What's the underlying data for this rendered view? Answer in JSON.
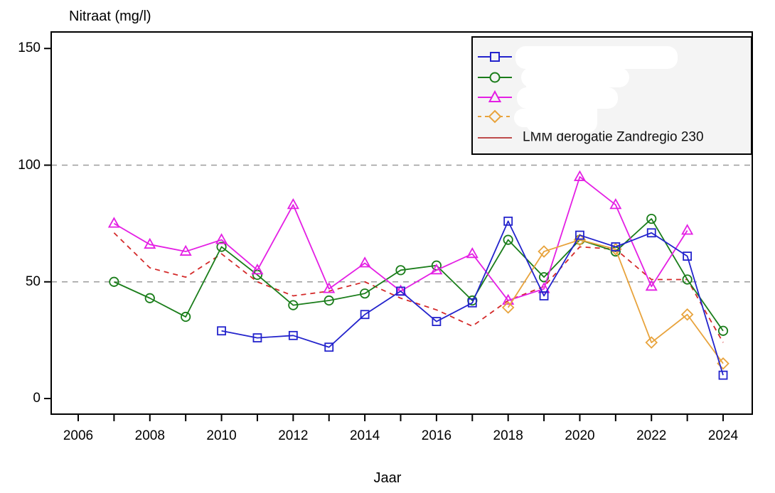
{
  "chart_data": {
    "type": "line",
    "title": "Nitraat (mg/l)",
    "xlabel": "Jaar",
    "ylabel": "",
    "ylim": [
      0,
      155
    ],
    "y_ticks": [
      0,
      50,
      100,
      150
    ],
    "gridlines_y": [
      50,
      100
    ],
    "grid_style": "dashed-gray-horizontal-only",
    "x_minor_ticks": [
      2006,
      2007,
      2008,
      2009,
      2010,
      2011,
      2012,
      2013,
      2014,
      2015,
      2016,
      2017,
      2018,
      2019,
      2020,
      2021,
      2022,
      2023,
      2024
    ],
    "x_tick_labels": [
      "2006",
      "2008",
      "2010",
      "2012",
      "2014",
      "2016",
      "2018",
      "2020",
      "2022",
      "2024"
    ],
    "x_tick_label_years": [
      2006,
      2008,
      2010,
      2012,
      2014,
      2016,
      2018,
      2020,
      2022,
      2024
    ],
    "legend_position": "top-right",
    "series": [
      {
        "name": "",
        "redacted_label": true,
        "marker": "square",
        "color": "#2323cc",
        "line_style": "solid",
        "x": [
          2010,
          2011,
          2012,
          2013,
          2014,
          2015,
          2016,
          2017,
          2018,
          2019,
          2020,
          2021,
          2022,
          2023,
          2024
        ],
        "y": [
          29,
          26,
          27,
          22,
          36,
          46,
          33,
          41,
          76,
          44,
          70,
          65,
          71,
          61,
          10
        ]
      },
      {
        "name": "",
        "redacted_label": true,
        "marker": "circle",
        "color": "#1a7d1a",
        "line_style": "solid",
        "x": [
          2007,
          2008,
          2009,
          2010,
          2011,
          2012,
          2013,
          2014,
          2015,
          2016,
          2017,
          2018,
          2019,
          2020,
          2021,
          2022,
          2023,
          2024
        ],
        "y": [
          50,
          43,
          35,
          65,
          53,
          40,
          42,
          45,
          55,
          57,
          42,
          68,
          52,
          68,
          63,
          77,
          51,
          29
        ]
      },
      {
        "name": "",
        "redacted_label": true,
        "marker": "triangle",
        "color": "#e41fe4",
        "line_style": "solid",
        "x": [
          2007,
          2008,
          2009,
          2010,
          2011,
          2012,
          2013,
          2014,
          2015,
          2016,
          2017,
          2018,
          2019,
          2020,
          2021,
          2022,
          2023
        ],
        "y": [
          75,
          66,
          63,
          68,
          55,
          83,
          47,
          58,
          46,
          55,
          62,
          42,
          47,
          95,
          83,
          48,
          72
        ]
      },
      {
        "name": "",
        "redacted_label": true,
        "marker": "diamond",
        "color": "#e8a33c",
        "line_style": "solid",
        "x": [
          2018,
          2019,
          2020,
          2021,
          2022,
          2023,
          2024
        ],
        "y": [
          39,
          63,
          68,
          64,
          24,
          36,
          15
        ]
      },
      {
        "name": "LMM derogatie Zandregio 230",
        "redacted_label": false,
        "marker": "none",
        "color": "#d42a2a",
        "line_style": "dashed",
        "x": [
          2007,
          2008,
          2009,
          2010,
          2011,
          2012,
          2013,
          2014,
          2015,
          2016,
          2017,
          2018,
          2019,
          2020,
          2021,
          2022,
          2023,
          2024
        ],
        "y": [
          71,
          56,
          52,
          62,
          50,
          44,
          46,
          50,
          43,
          38,
          31,
          42,
          48,
          65,
          64,
          51,
          51,
          24
        ]
      }
    ]
  },
  "legend": {
    "background": "#f4f4f4",
    "entries": [
      {
        "label": "",
        "redacted": true,
        "color": "#2323cc",
        "marker": "square",
        "line": "solid"
      },
      {
        "label": "",
        "redacted": true,
        "color": "#1a7d1a",
        "marker": "circle",
        "line": "solid"
      },
      {
        "label": "",
        "redacted": true,
        "color": "#e41fe4",
        "marker": "triangle",
        "line": "solid"
      },
      {
        "label": "",
        "redacted": true,
        "color": "#e8a33c",
        "marker": "diamond",
        "line": "dashed"
      },
      {
        "label": "LMM derogatie Zandregio 230",
        "redacted": false,
        "color": "#be4b4b",
        "marker": "none",
        "line": "solid"
      }
    ]
  },
  "colors": {
    "axis": "#000000",
    "gridline": "#9b9b9b",
    "background": "#ffffff"
  }
}
